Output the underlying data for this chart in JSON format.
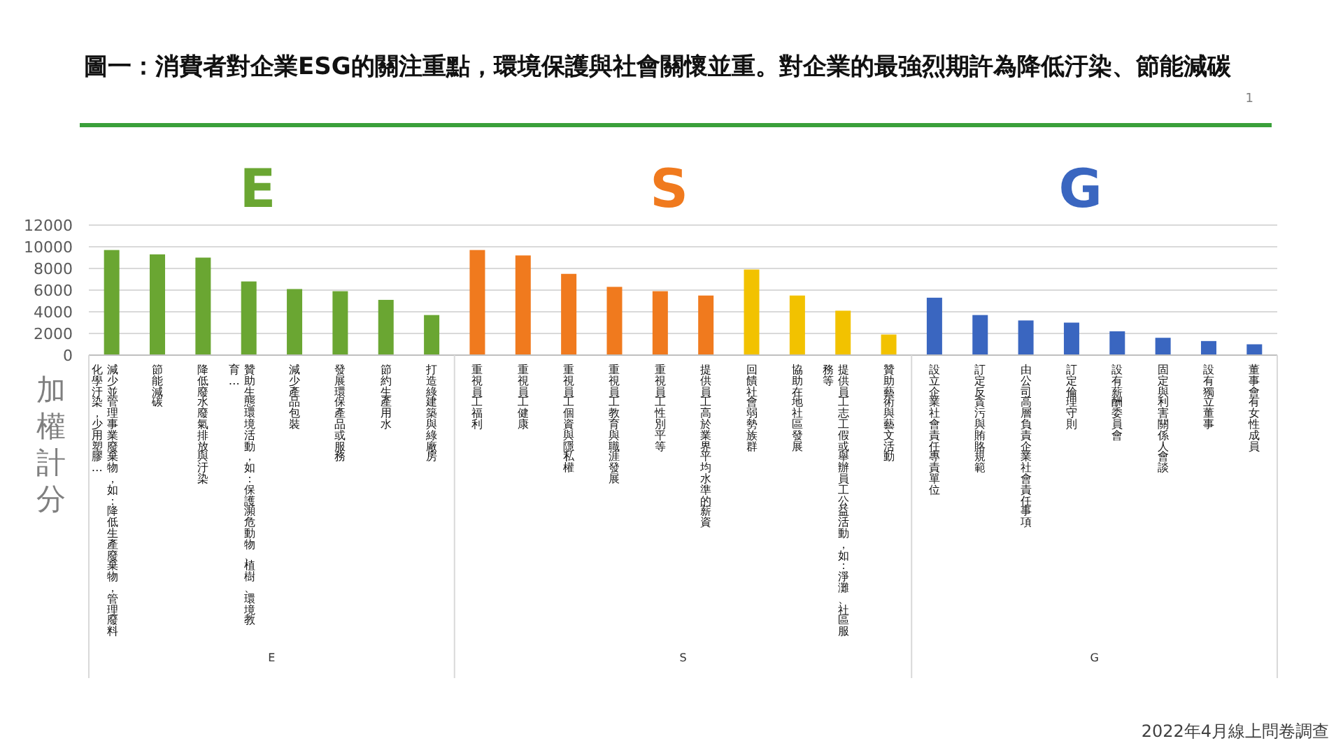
{
  "chart_data": {
    "type": "bar",
    "title": "圖一：消費者對企業ESG的關注重點，環境保護與社會關懷並重。對企業的最強烈期許為降低汙染、節能減碳",
    "ylabel": "加權計分",
    "categories": [
      "減少並管理事業廢棄物，如：降低生產廢棄物，管理廢料化學汙染，少用塑膠…",
      "節能減碳",
      "降低廢水廢氣排放與汙染",
      "贊助生態環境活動，如：保護瀕危動物、植樹、環境教育…",
      "減少產品包裝",
      "發展環保產品或服務",
      "節約生產用水",
      "打造綠建築與綠廠房",
      "重視員工福利",
      "重視員工健康",
      "重視員工個資與隱私權",
      "重視員工教育與職涯發展",
      "重視員工性別平等",
      "提供員工高於業界平均水準的薪資",
      "回饋社會弱勢族群",
      "協助在地社區發展",
      "提供員工志工假或舉辦員工公益活動，如：淨灘、社區服務等",
      "贊助藝術與藝文活動",
      "設立企業社會責任專責單位",
      "訂定反貪污與賄賂規範",
      "由公司高層負責企業社會責任事項",
      "訂定倫理守則",
      "設有薪酬委員會",
      "固定與利害關係人會談",
      "設有獨立董事",
      "董事會有女性成員"
    ],
    "series": [
      {
        "name": "E",
        "color": "#6aa632",
        "values": [
          9700,
          9300,
          9000,
          6800,
          6100,
          5900,
          5100,
          3700,
          null,
          null,
          null,
          null,
          null,
          null,
          null,
          null,
          null,
          null,
          null,
          null,
          null,
          null,
          null,
          null,
          null,
          null
        ]
      },
      {
        "name": "S",
        "color": "#f07a1e",
        "values": [
          null,
          null,
          null,
          null,
          null,
          null,
          null,
          null,
          9700,
          9200,
          7500,
          6300,
          5900,
          5500,
          null,
          null,
          null,
          null,
          null,
          null,
          null,
          null,
          null,
          null,
          null,
          null
        ]
      },
      {
        "color": "#f2c200",
        "values": [
          null,
          null,
          null,
          null,
          null,
          null,
          null,
          null,
          null,
          null,
          null,
          null,
          null,
          null,
          7900,
          5500,
          4100,
          1900,
          null,
          null,
          null,
          null,
          null,
          null,
          null,
          null
        ]
      },
      {
        "name": "G",
        "color": "#3a66c0",
        "values": [
          null,
          null,
          null,
          null,
          null,
          null,
          null,
          null,
          null,
          null,
          null,
          null,
          null,
          null,
          null,
          null,
          null,
          null,
          5300,
          3700,
          3200,
          3000,
          2200,
          1600,
          1300,
          1000
        ]
      }
    ],
    "ylim": [
      0,
      12000
    ],
    "yticks": [
      0,
      2000,
      4000,
      6000,
      8000,
      10000,
      12000
    ],
    "grid": "y",
    "annotations": [
      "1",
      "2022年4月線上問卷調查"
    ]
  }
}
